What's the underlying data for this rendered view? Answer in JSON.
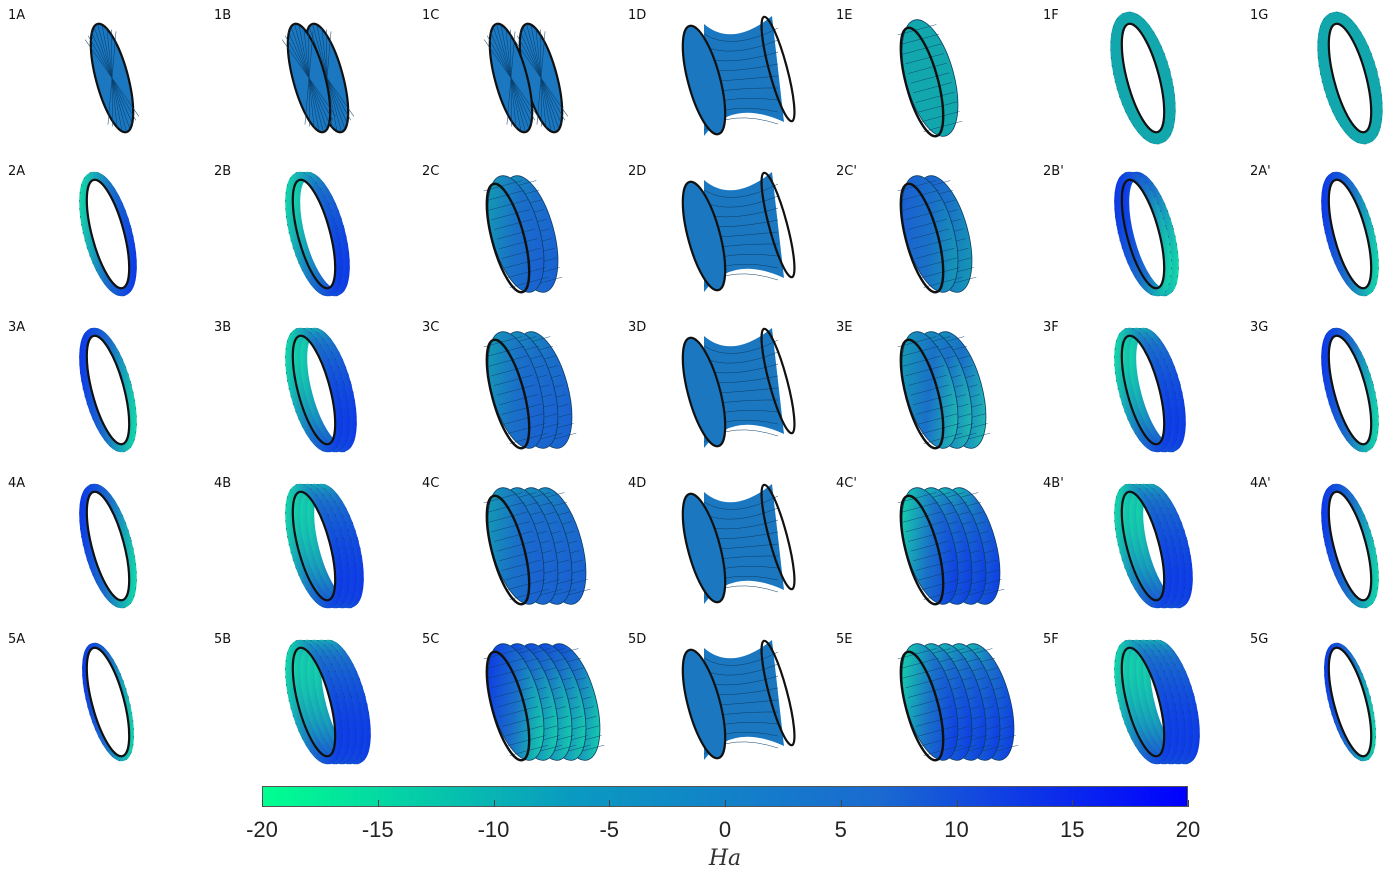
{
  "figure": {
    "rows": [
      {
        "labels": [
          "1A",
          "1B",
          "1C",
          "1D",
          "1E",
          "1F",
          "1G"
        ],
        "shapes": [
          {
            "kind": "disk",
            "lobes": 1,
            "color": "base"
          },
          {
            "kind": "disk",
            "lobes": 2,
            "color": "base"
          },
          {
            "kind": "disk",
            "lobes": 2,
            "color": "base",
            "spread": true
          },
          {
            "kind": "neck",
            "color": "base"
          },
          {
            "kind": "tube",
            "lobes": 1,
            "color": "teal"
          },
          {
            "kind": "ring",
            "lobes": 1,
            "color": "teal",
            "thick": true
          },
          {
            "kind": "ring",
            "lobes": 1,
            "color": "teal",
            "thick": true
          }
        ]
      },
      {
        "labels": [
          "2A",
          "2B",
          "2C",
          "2D",
          "2C'",
          "2B'",
          "2A'"
        ],
        "shapes": [
          {
            "kind": "ring",
            "lobes": 1,
            "color": "green-blue"
          },
          {
            "kind": "ring",
            "lobes": 2,
            "color": "green-blue"
          },
          {
            "kind": "tube",
            "lobes": 2,
            "color": "teal-blue"
          },
          {
            "kind": "neck",
            "color": "base"
          },
          {
            "kind": "tube",
            "lobes": 2,
            "color": "blue-teal"
          },
          {
            "kind": "ring",
            "lobes": 2,
            "color": "blue-green"
          },
          {
            "kind": "ring",
            "lobes": 1,
            "color": "blue-green"
          }
        ]
      },
      {
        "labels": [
          "3A",
          "3B",
          "3C",
          "3D",
          "3E",
          "3F",
          "3G"
        ],
        "shapes": [
          {
            "kind": "ring",
            "lobes": 1,
            "color": "blue-green"
          },
          {
            "kind": "ring",
            "lobes": 3,
            "color": "green-blue"
          },
          {
            "kind": "tube",
            "lobes": 3,
            "color": "teal-blue"
          },
          {
            "kind": "neck",
            "color": "base"
          },
          {
            "kind": "tube",
            "lobes": 3,
            "color": "teal-green"
          },
          {
            "kind": "ring",
            "lobes": 3,
            "color": "green-blue"
          },
          {
            "kind": "ring",
            "lobes": 1,
            "color": "blue-green"
          }
        ]
      },
      {
        "labels": [
          "4A",
          "4B",
          "4C",
          "4D",
          "4C'",
          "4B'",
          "4A'"
        ],
        "shapes": [
          {
            "kind": "ring",
            "lobes": 1,
            "color": "blue-green"
          },
          {
            "kind": "ring",
            "lobes": 4,
            "color": "green-blue"
          },
          {
            "kind": "tube",
            "lobes": 4,
            "color": "teal-blue"
          },
          {
            "kind": "neck",
            "color": "base"
          },
          {
            "kind": "tube",
            "lobes": 4,
            "color": "green-blue"
          },
          {
            "kind": "ring",
            "lobes": 4,
            "color": "green-blue"
          },
          {
            "kind": "ring",
            "lobes": 1,
            "color": "blue-green"
          }
        ]
      },
      {
        "labels": [
          "5A",
          "5B",
          "5C",
          "5D",
          "5E",
          "5F",
          "5G"
        ],
        "shapes": [
          {
            "kind": "ring",
            "lobes": 1,
            "color": "blue-green",
            "thin": true
          },
          {
            "kind": "ring",
            "lobes": 5,
            "color": "green-blue"
          },
          {
            "kind": "tube",
            "lobes": 5,
            "color": "blue-green"
          },
          {
            "kind": "neck",
            "color": "base"
          },
          {
            "kind": "tube",
            "lobes": 5,
            "color": "green-blue"
          },
          {
            "kind": "ring",
            "lobes": 5,
            "color": "green-blue"
          },
          {
            "kind": "ring",
            "lobes": 1,
            "color": "blue-green",
            "thin": true
          }
        ]
      }
    ],
    "palette": {
      "base": "#1a77c0",
      "teal": "#12a7ad",
      "green": "#12f0a0",
      "blue": "#0a2af0",
      "mid": "#1a70c8",
      "edge": "#111111"
    }
  },
  "colorbar": {
    "min": -20,
    "max": 20,
    "ticks": [
      "-20",
      "-15",
      "-10",
      "-5",
      "0",
      "5",
      "10",
      "15",
      "20"
    ],
    "label": "Ha",
    "gradient": [
      "#00ff90",
      "#0a9ac0",
      "#1a6ad0",
      "#0000ff"
    ]
  }
}
